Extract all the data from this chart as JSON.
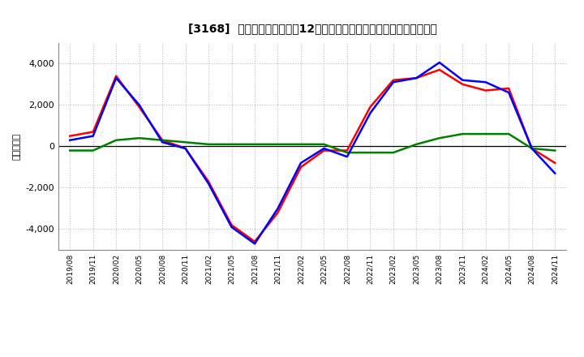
{
  "title": "[3168]  キャッシュフローの12か月移動合計の対前年同期増減額の推移",
  "ylabel": "（百万円）",
  "background_color": "#ffffff",
  "plot_background": "#ffffff",
  "grid_color": "#bbbbbb",
  "x_labels": [
    "2019/08",
    "2019/11",
    "2020/02",
    "2020/05",
    "2020/08",
    "2020/11",
    "2021/02",
    "2021/05",
    "2021/08",
    "2021/11",
    "2022/02",
    "2022/05",
    "2022/08",
    "2022/11",
    "2023/02",
    "2023/05",
    "2023/08",
    "2023/11",
    "2024/02",
    "2024/05",
    "2024/08",
    "2024/11"
  ],
  "operating_cf": [
    500,
    700,
    3400,
    1900,
    300,
    -100,
    -1700,
    -3800,
    -4600,
    -3200,
    -1000,
    -200,
    -200,
    1900,
    3200,
    3300,
    3700,
    3000,
    2700,
    2800,
    -100,
    -800
  ],
  "investing_cf": [
    -200,
    -200,
    300,
    400,
    300,
    200,
    100,
    100,
    100,
    100,
    100,
    100,
    -300,
    -300,
    -300,
    100,
    400,
    600,
    600,
    600,
    -100,
    -200
  ],
  "free_cf": [
    300,
    500,
    3300,
    2000,
    200,
    -100,
    -1800,
    -3900,
    -4700,
    -3000,
    -800,
    -100,
    -500,
    1600,
    3100,
    3300,
    4050,
    3200,
    3100,
    2600,
    -100,
    -1300
  ],
  "operating_color": "#ff0000",
  "investing_color": "#008000",
  "free_color": "#0000ff",
  "ylim": [
    -5000,
    5000
  ],
  "yticks": [
    -4000,
    -2000,
    0,
    2000,
    4000
  ]
}
